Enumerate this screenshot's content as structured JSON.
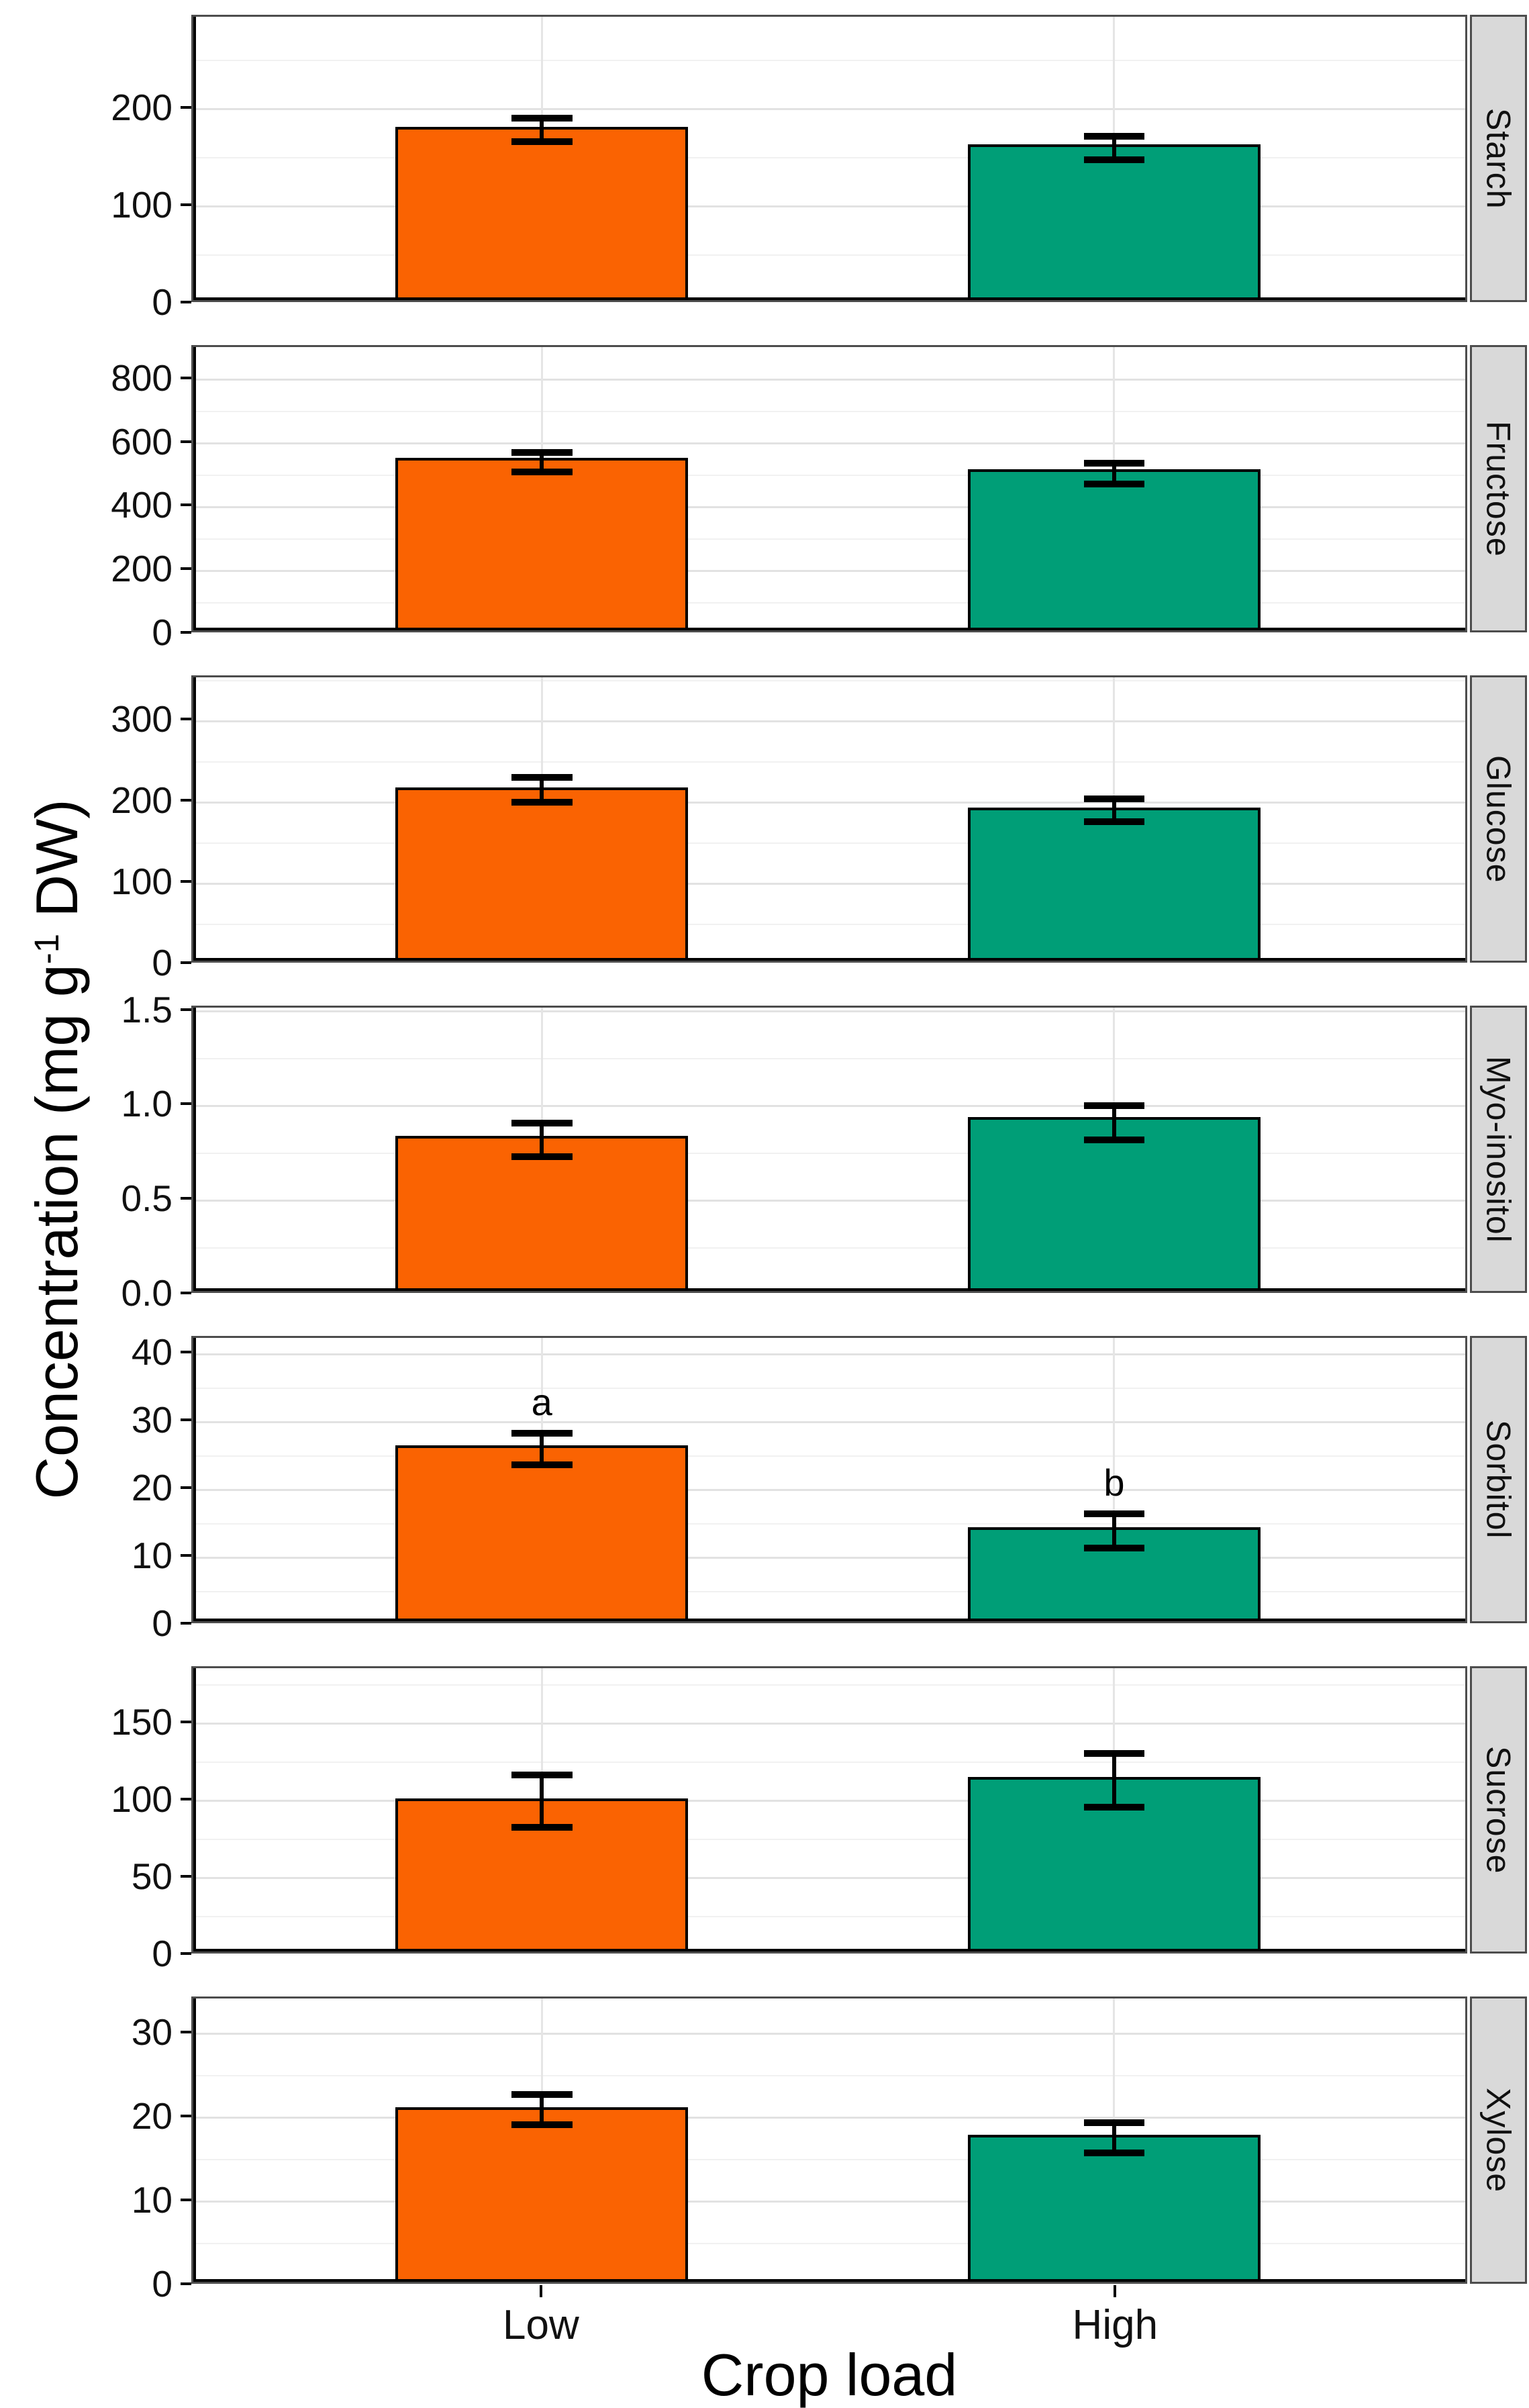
{
  "figure": {
    "ylabel": {
      "prefix": "Concentration (mg g",
      "superscript": "-1",
      "suffix": " DW)"
    }
  },
  "chart_data": {
    "type": "bar",
    "orientation": "vertical",
    "facet_layout": "rows",
    "categories": [
      "Low",
      "High"
    ],
    "x_axis_title": "Crop load",
    "y_axis_title": "Concentration (mg g^-1 DW)",
    "colors": {
      "Low": "#FA6302",
      "High": "#009E77"
    },
    "grid": true,
    "error_bars": "mean ± SE",
    "facets": [
      {
        "name": "Starch",
        "ylim": [
          0,
          295
        ],
        "yticks": [
          0,
          100,
          200
        ],
        "ytick_labels": [
          "0",
          "100",
          "200"
        ],
        "bars": [
          {
            "category": "Low",
            "value": 178,
            "err_low": 167,
            "err_high": 191,
            "sig_letter": ""
          },
          {
            "category": "High",
            "value": 160,
            "err_low": 148,
            "err_high": 172,
            "sig_letter": ""
          }
        ]
      },
      {
        "name": "Fructose",
        "ylim": [
          0,
          903
        ],
        "yticks": [
          0,
          200,
          400,
          600,
          800
        ],
        "ytick_labels": [
          "0",
          "200",
          "400",
          "600",
          "800"
        ],
        "bars": [
          {
            "category": "Low",
            "value": 543,
            "err_low": 511,
            "err_high": 571,
            "sig_letter": ""
          },
          {
            "category": "High",
            "value": 507,
            "err_low": 473,
            "err_high": 539,
            "sig_letter": ""
          }
        ]
      },
      {
        "name": "Glucose",
        "ylim": [
          0,
          354
        ],
        "yticks": [
          0,
          100,
          200,
          300
        ],
        "ytick_labels": [
          "0",
          "100",
          "200",
          "300"
        ],
        "bars": [
          {
            "category": "Low",
            "value": 213,
            "err_low": 200,
            "err_high": 231,
            "sig_letter": ""
          },
          {
            "category": "High",
            "value": 189,
            "err_low": 176,
            "err_high": 204,
            "sig_letter": ""
          }
        ]
      },
      {
        "name": "Myo-inositol",
        "ylim": [
          0,
          1.52
        ],
        "yticks": [
          0,
          0.5,
          1.0,
          1.5
        ],
        "ytick_labels": [
          "0.0",
          "0.5",
          "1.0",
          "1.5"
        ],
        "bars": [
          {
            "category": "Low",
            "value": 0.82,
            "err_low": 0.73,
            "err_high": 0.91,
            "sig_letter": ""
          },
          {
            "category": "High",
            "value": 0.92,
            "err_low": 0.82,
            "err_high": 1.0,
            "sig_letter": ""
          }
        ]
      },
      {
        "name": "Sorbitol",
        "ylim": [
          0,
          42.4
        ],
        "yticks": [
          0,
          10,
          20,
          30,
          40
        ],
        "ytick_labels": [
          "0",
          "10",
          "20",
          "30",
          "40"
        ],
        "bars": [
          {
            "category": "Low",
            "value": 26.0,
            "err_low": 23.7,
            "err_high": 28.3,
            "sig_letter": "a"
          },
          {
            "category": "High",
            "value": 13.9,
            "err_low": 11.4,
            "err_high": 16.4,
            "sig_letter": "b"
          }
        ]
      },
      {
        "name": "Sucrose",
        "ylim": [
          0,
          186
        ],
        "yticks": [
          0,
          50,
          100,
          150
        ],
        "ytick_labels": [
          "0",
          "50",
          "100",
          "150"
        ],
        "bars": [
          {
            "category": "Low",
            "value": 99,
            "err_low": 83,
            "err_high": 117,
            "sig_letter": ""
          },
          {
            "category": "High",
            "value": 113,
            "err_low": 96,
            "err_high": 131,
            "sig_letter": ""
          }
        ]
      },
      {
        "name": "Xylose",
        "ylim": [
          0,
          34.2
        ],
        "yticks": [
          0,
          10,
          20,
          30
        ],
        "ytick_labels": [
          "0",
          "10",
          "20",
          "30"
        ],
        "bars": [
          {
            "category": "Low",
            "value": 20.8,
            "err_low": 19.2,
            "err_high": 22.8,
            "sig_letter": ""
          },
          {
            "category": "High",
            "value": 17.5,
            "err_low": 15.8,
            "err_high": 19.4,
            "sig_letter": ""
          }
        ]
      }
    ]
  }
}
